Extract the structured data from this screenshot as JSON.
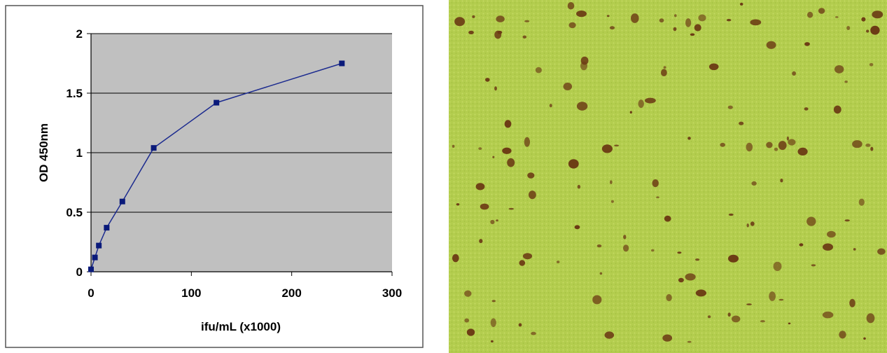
{
  "chart_data": {
    "type": "line",
    "title": "",
    "xlabel": "ifu/mL (x1000)",
    "ylabel": "OD 450nm",
    "xlim": [
      0,
      300
    ],
    "ylim": [
      0,
      2
    ],
    "x_ticks": [
      "0",
      "100",
      "200",
      "300"
    ],
    "y_ticks": [
      "0",
      "0.5",
      "1",
      "1.5",
      "2"
    ],
    "grid": "horizontal",
    "legend": "none",
    "series": [
      {
        "x": [
          0,
          3.9,
          7.8,
          15.6,
          31.25,
          62.5,
          125,
          250
        ],
        "y": [
          0.02,
          0.12,
          0.22,
          0.37,
          0.59,
          1.04,
          1.42,
          1.75
        ]
      }
    ]
  },
  "colors": {
    "plot_background": "#c0c0c0",
    "series_line": "#1c2b8f",
    "marker": "#0a1a7a",
    "gridline": "#000000",
    "panel_border": "#555555",
    "photo_background": "#b3cd4e",
    "spot": "#6b3a14"
  },
  "image": {
    "description_icon": "microscope-stained-cells-image"
  }
}
